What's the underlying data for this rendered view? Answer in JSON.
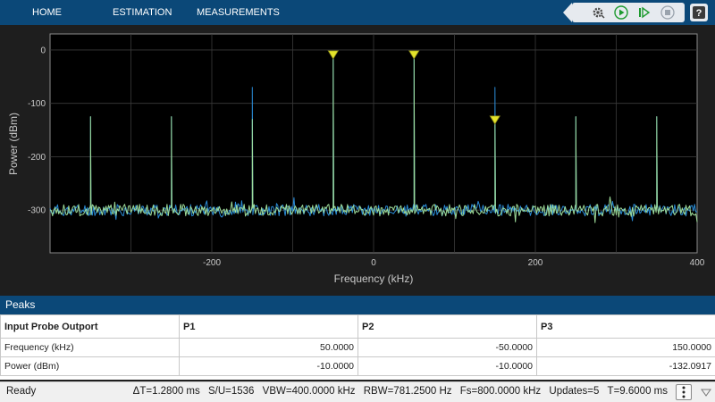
{
  "toolbar": {
    "tabs": [
      {
        "label": "HOME"
      },
      {
        "label": "ESTIMATION"
      },
      {
        "label": "MEASUREMENTS"
      }
    ],
    "quick_access": [
      {
        "icon": "settings-gear-icon"
      },
      {
        "icon": "run-play-icon"
      },
      {
        "icon": "step-forward-icon"
      },
      {
        "icon": "stop-icon"
      },
      {
        "icon": "help-icon"
      }
    ]
  },
  "chart_data": {
    "type": "line",
    "xlabel": "Frequency (kHz)",
    "ylabel": "Power (dBm)",
    "xlim": [
      -400,
      400
    ],
    "ylim": [
      -380,
      30
    ],
    "x_ticks": [
      "-200",
      "0",
      "200",
      "400"
    ],
    "y_ticks": [
      "0",
      "-100",
      "-200",
      "-300"
    ],
    "grid": true,
    "noise_floor": -300,
    "series": [
      {
        "color": "#2a8bd6",
        "peaks": [
          {
            "x": -350,
            "y": -125
          },
          {
            "x": -250,
            "y": -125
          },
          {
            "x": -150,
            "y": -70
          },
          {
            "x": -50,
            "y": -10
          },
          {
            "x": 50,
            "y": -10
          },
          {
            "x": 150,
            "y": -70
          },
          {
            "x": 250,
            "y": -125
          },
          {
            "x": 350,
            "y": -125
          }
        ]
      },
      {
        "color": "#9edc9a",
        "peaks": [
          {
            "x": -350,
            "y": -125
          },
          {
            "x": -250,
            "y": -125
          },
          {
            "x": -150,
            "y": -130
          },
          {
            "x": -50,
            "y": -10
          },
          {
            "x": 50,
            "y": -10
          },
          {
            "x": 150,
            "y": -132.0917
          },
          {
            "x": 250,
            "y": -125
          },
          {
            "x": 350,
            "y": -125
          }
        ]
      }
    ],
    "markers": [
      {
        "x": 50,
        "y": -10,
        "color": "#e3e32a"
      },
      {
        "x": -50,
        "y": -10,
        "color": "#e3e32a"
      },
      {
        "x": 150,
        "y": -132.0917,
        "color": "#e3e32a"
      }
    ]
  },
  "peaks": {
    "title": "Peaks",
    "headers": [
      "Input Probe Outport",
      "P1",
      "P2",
      "P3"
    ],
    "rows": [
      {
        "label": "Frequency (kHz)",
        "values": [
          "50.0000",
          "-50.0000",
          "150.0000"
        ]
      },
      {
        "label": "Power (dBm)",
        "values": [
          "-10.0000",
          "-10.0000",
          "-132.0917"
        ]
      }
    ]
  },
  "status": {
    "ready": "Ready",
    "metrics": [
      "ΔT=1.2800 ms",
      "S/U=1536",
      "VBW=400.0000 kHz",
      "RBW=781.2500 Hz",
      "Fs=800.0000 kHz",
      "Updates=5",
      "T=9.6000 ms"
    ]
  }
}
